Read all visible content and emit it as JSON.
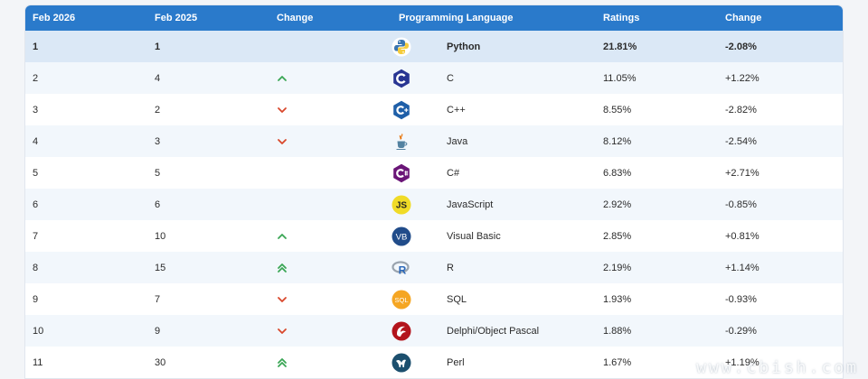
{
  "headers": {
    "current": "Feb 2026",
    "previous": "Feb 2025",
    "change": "Change",
    "language": "Programming Language",
    "ratings": "Ratings",
    "delta": "Change"
  },
  "rows": [
    {
      "cur": "1",
      "prev": "1",
      "trend": "none",
      "icon": "python-logo-icon",
      "language": "Python",
      "rating": "21.81%",
      "delta": "-2.08%"
    },
    {
      "cur": "2",
      "prev": "4",
      "trend": "up",
      "icon": "c-logo-icon",
      "language": "C",
      "rating": "11.05%",
      "delta": "+1.22%"
    },
    {
      "cur": "3",
      "prev": "2",
      "trend": "down",
      "icon": "cpp-logo-icon",
      "language": "C++",
      "rating": "8.55%",
      "delta": "-2.82%"
    },
    {
      "cur": "4",
      "prev": "3",
      "trend": "down",
      "icon": "java-logo-icon",
      "language": "Java",
      "rating": "8.12%",
      "delta": "-2.54%"
    },
    {
      "cur": "5",
      "prev": "5",
      "trend": "none",
      "icon": "csharp-logo-icon",
      "language": "C#",
      "rating": "6.83%",
      "delta": "+2.71%"
    },
    {
      "cur": "6",
      "prev": "6",
      "trend": "none",
      "icon": "javascript-logo-icon",
      "language": "JavaScript",
      "rating": "2.92%",
      "delta": "-0.85%"
    },
    {
      "cur": "7",
      "prev": "10",
      "trend": "up",
      "icon": "visual-basic-logo-icon",
      "language": "Visual Basic",
      "rating": "2.85%",
      "delta": "+0.81%"
    },
    {
      "cur": "8",
      "prev": "15",
      "trend": "double-up",
      "icon": "r-logo-icon",
      "language": "R",
      "rating": "2.19%",
      "delta": "+1.14%"
    },
    {
      "cur": "9",
      "prev": "7",
      "trend": "down",
      "icon": "sql-logo-icon",
      "language": "SQL",
      "rating": "1.93%",
      "delta": "-0.93%"
    },
    {
      "cur": "10",
      "prev": "9",
      "trend": "down",
      "icon": "delphi-logo-icon",
      "language": "Delphi/Object Pascal",
      "rating": "1.88%",
      "delta": "-0.29%"
    },
    {
      "cur": "11",
      "prev": "30",
      "trend": "double-up",
      "icon": "perl-logo-icon",
      "language": "Perl",
      "rating": "1.67%",
      "delta": "+1.19%"
    }
  ],
  "colors": {
    "header": "#2a7acb",
    "up": "#3aa655",
    "down": "#d9472b"
  },
  "watermark": "www.cbish.com"
}
